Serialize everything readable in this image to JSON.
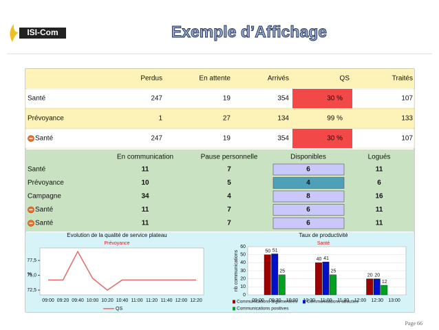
{
  "header": {
    "logo": "ISI-Com",
    "title": "Exemple d’Affichage",
    "page": "Page 66"
  },
  "table1": {
    "columns": [
      "Perdus",
      "En attente",
      "Arrivés",
      "QS",
      "Traités"
    ],
    "rows": [
      {
        "label": "Santé",
        "icon": false,
        "qs_alert": true,
        "cells": [
          247,
          19,
          354,
          "30 %",
          107
        ]
      },
      {
        "label": "Prévoyance",
        "icon": false,
        "qs_alert": false,
        "cells": [
          1,
          27,
          134,
          "99 %",
          133
        ]
      },
      {
        "label": "Santé",
        "icon": true,
        "qs_alert": true,
        "cells": [
          247,
          19,
          354,
          "30 %",
          107
        ]
      }
    ]
  },
  "table2": {
    "columns": [
      "En communication",
      "Pause personnelle",
      "Disponibles",
      "Logués"
    ],
    "rows": [
      {
        "label": "Santé",
        "icon": false,
        "highlight": false,
        "cells": [
          11,
          7,
          6,
          11
        ]
      },
      {
        "label": "Prévoyance",
        "icon": false,
        "highlight": true,
        "cells": [
          10,
          5,
          4,
          6
        ]
      },
      {
        "label": "Campagne",
        "icon": false,
        "highlight": false,
        "cells": [
          34,
          4,
          8,
          16
        ]
      },
      {
        "label": "Santé",
        "icon": true,
        "highlight": false,
        "cells": [
          11,
          7,
          6,
          11
        ]
      },
      {
        "label": "Santé",
        "icon": true,
        "highlight": false,
        "cells": [
          11,
          7,
          6,
          11
        ]
      }
    ]
  },
  "line_chart": {
    "type": "line",
    "title": "Evolution de la qualité de service plateau",
    "subtitle": "Prévoyance",
    "y_label": "%",
    "categories": [
      "09:00",
      "09:20",
      "09:40",
      "10:00",
      "10:20",
      "10:40",
      "11:00",
      "11:20",
      "11:40",
      "12:00",
      "12:20"
    ],
    "series": [
      {
        "name": "QS",
        "color": "#e07070",
        "values": [
          74.2,
          74.2,
          79,
          74.5,
          72.5,
          74.2,
          74.2,
          74.2,
          74.2,
          74.2,
          74.2
        ]
      }
    ],
    "ylim": [
      71.7,
      79.6
    ],
    "yticks": [
      {
        "value": 72.5,
        "label": "72,5"
      },
      {
        "value": 75,
        "label": "75,0"
      },
      {
        "value": 77.5,
        "label": "77,5"
      }
    ]
  },
  "bar_chart": {
    "type": "bar",
    "title": "Taux de productivité",
    "subtitle": "Santé",
    "y_label": "nb communications",
    "categories": [
      "09:00",
      "09:30",
      "10:00",
      "10:30",
      "11:00",
      "11:30",
      "12:00",
      "12:30",
      "13:00"
    ],
    "series": [
      {
        "name": "Communications argumentées",
        "color": "#9c0000",
        "values": [
          null,
          50,
          null,
          null,
          40,
          null,
          null,
          20,
          null
        ]
      },
      {
        "name": "Communications abouties",
        "color": "#0010c8",
        "values": [
          null,
          51,
          null,
          null,
          41,
          null,
          null,
          20,
          null
        ]
      },
      {
        "name": "Communications positives",
        "color": "#00a020",
        "values": [
          null,
          25,
          null,
          null,
          25,
          null,
          null,
          12,
          null
        ]
      }
    ],
    "ylim": [
      0,
      60
    ],
    "yticks": [
      0,
      10,
      20,
      30,
      40,
      50,
      60
    ]
  }
}
